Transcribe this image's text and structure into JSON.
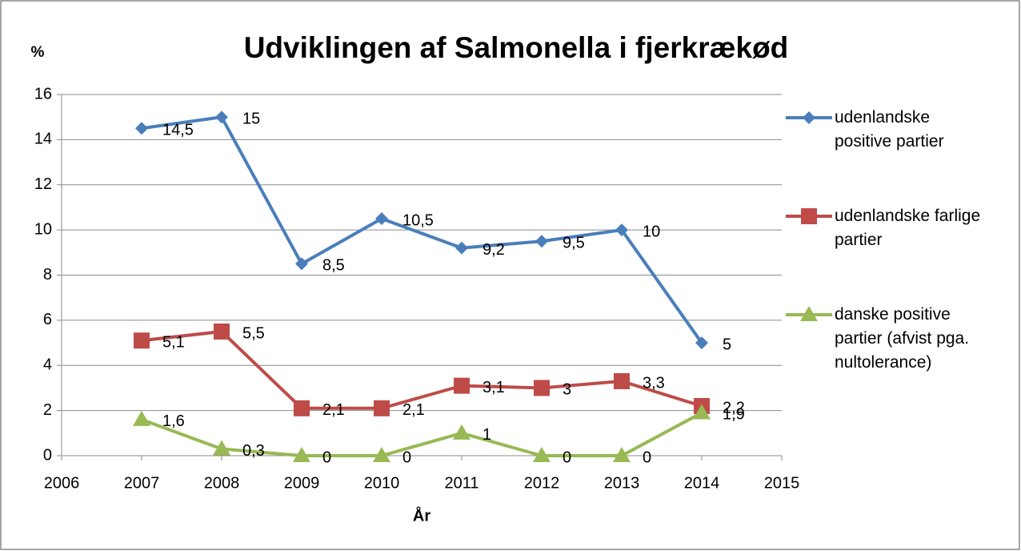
{
  "chart_data": {
    "type": "line",
    "title": "Udviklingen af Salmonella i fjerkrækød",
    "y_label": "%",
    "x_label": "År",
    "x": [
      2007,
      2008,
      2009,
      2010,
      2011,
      2012,
      2013,
      2014
    ],
    "series": [
      {
        "name": "udenlandske positive partier",
        "color": "#4a7ebb",
        "marker": "diamond",
        "values": [
          14.5,
          15,
          8.5,
          10.5,
          9.2,
          9.5,
          10,
          5
        ],
        "value_labels": [
          "14,5",
          "15",
          "8,5",
          "10,5",
          "9,2",
          "9,5",
          "10",
          "5"
        ]
      },
      {
        "name": "udenlandske farlige partier",
        "color": "#be4b48",
        "marker": "square",
        "values": [
          5.1,
          5.5,
          2.1,
          2.1,
          3.1,
          3,
          3.3,
          2.2
        ],
        "value_labels": [
          "5,1",
          "5,5",
          "2,1",
          "2,1",
          "3,1",
          "3",
          "3,3",
          "2,2"
        ]
      },
      {
        "name": "danske positive partier (afvist pga. nultolerance)",
        "color": "#98b954",
        "marker": "triangle",
        "values": [
          1.6,
          0.3,
          0,
          0,
          1,
          0,
          0,
          1.9
        ],
        "value_labels": [
          "1,6",
          "0,3",
          "0",
          "0",
          "1",
          "0",
          "0",
          "1,9"
        ]
      }
    ],
    "xlim": [
      2006,
      2015
    ],
    "xticks": [
      2006,
      2007,
      2008,
      2009,
      2010,
      2011,
      2012,
      2013,
      2014,
      2015
    ],
    "ylim": [
      0,
      16
    ],
    "yticks": [
      0,
      2,
      4,
      6,
      8,
      10,
      12,
      14,
      16
    ],
    "grid": true,
    "legend": "right"
  }
}
